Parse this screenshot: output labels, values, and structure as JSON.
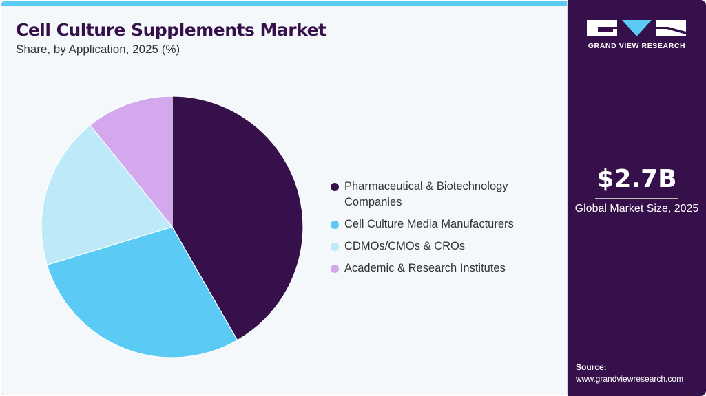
{
  "header": {
    "title": "Cell Culture Supplements Market",
    "subtitle": "Share, by Application, 2025 (%)"
  },
  "sidebar": {
    "logo_text": "GRAND VIEW RESEARCH",
    "market_value": "$2.7B",
    "market_label": "Global Market Size, 2025",
    "source_label": "Source:",
    "source_url": "www.grandviewresearch.com"
  },
  "colors": {
    "accent": "#5bcbf5",
    "brand": "#36104a"
  },
  "chart_data": {
    "type": "pie",
    "start_angle": "12 o'clock, clockwise",
    "legend_placement": "right",
    "categories": [
      "Pharmaceutical & Biotechnology Companies",
      "Cell Culture Media Manufacturers",
      "CDMOs/CMOs & CROs",
      "Academic & Research Institutes"
    ],
    "values": [
      41.7,
      28.6,
      18.9,
      10.8
    ],
    "colors": [
      "#36104a",
      "#5bcbf5",
      "#bde9f8",
      "#d4a8ec"
    ]
  }
}
